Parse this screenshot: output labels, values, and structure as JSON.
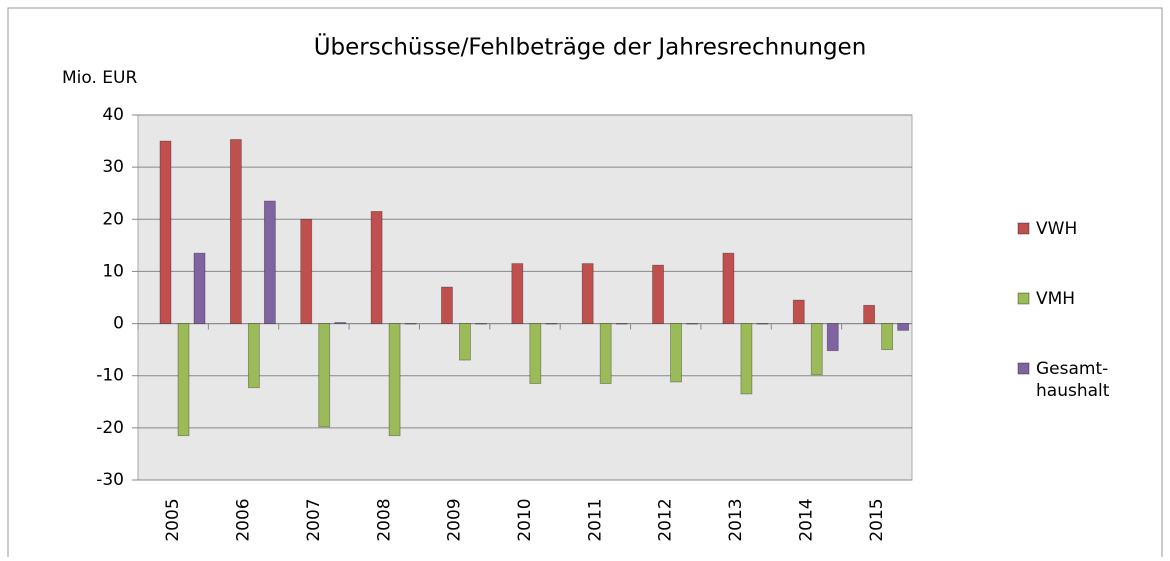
{
  "chart_data": {
    "type": "bar",
    "title": "Überschüsse/Fehlbeträge der Jahresrechnungen",
    "ylabel": "Mio. EUR",
    "categories": [
      "2005",
      "2006",
      "2007",
      "2008",
      "2009",
      "2010",
      "2011",
      "2012",
      "2013",
      "2014",
      "2015"
    ],
    "series": [
      {
        "name": "VWH",
        "color": "#c0504d",
        "values": [
          35,
          35.3,
          20,
          21.5,
          7,
          11.5,
          11.5,
          11.2,
          13.5,
          4.5,
          3.5
        ]
      },
      {
        "name": "VMH",
        "color": "#9bbb59",
        "values": [
          -21.5,
          -12.3,
          -19.8,
          -21.5,
          -7,
          -11.5,
          -11.5,
          -11.2,
          -13.5,
          -9.8,
          -5
        ]
      },
      {
        "name": "Gesamt-haushalt",
        "color": "#8064a2",
        "values": [
          13.5,
          23.5,
          0.2,
          0,
          0,
          0,
          0,
          0,
          0,
          -5.2,
          -1.3
        ]
      }
    ],
    "ylim": [
      -30,
      40
    ],
    "yticks": [
      -30,
      -20,
      -10,
      0,
      10,
      20,
      30,
      40
    ],
    "grid": true,
    "legend": "right"
  }
}
